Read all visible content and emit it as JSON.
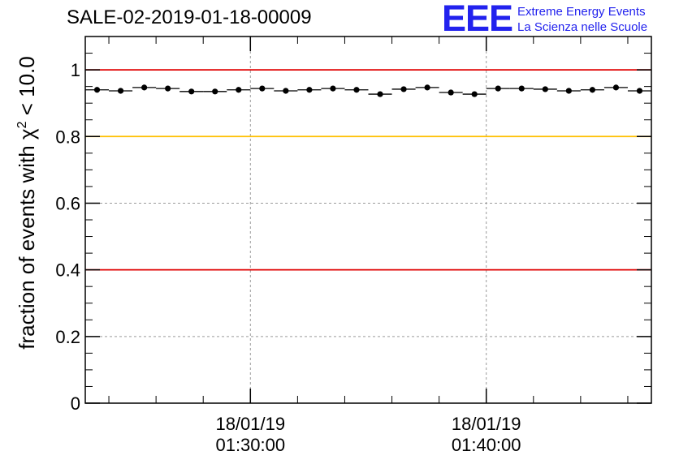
{
  "header": {
    "title": "SALE-02-2019-01-18-00009",
    "logo_text": "EEE",
    "brand_line_1": "Extreme Energy Events",
    "brand_line_2": "La Scienza nelle Scuole"
  },
  "chart_data": {
    "type": "scatter",
    "title": "SALE-02-2019-01-18-00009",
    "ylabel_prefix": "fraction of events with ",
    "ylabel_chi": "χ",
    "ylabel_sup": "2",
    "ylabel_suffix": " < 10.0",
    "xlabel": "",
    "ylim": [
      0,
      1.1
    ],
    "xlim_minutes": [
      23.0,
      47.0
    ],
    "y_ticks": [
      {
        "value": 0,
        "label": "0"
      },
      {
        "value": 0.2,
        "label": "0.2"
      },
      {
        "value": 0.4,
        "label": "0.4"
      },
      {
        "value": 0.6,
        "label": "0.6"
      },
      {
        "value": 0.8,
        "label": "0.8"
      },
      {
        "value": 1,
        "label": "1"
      }
    ],
    "x_ticks": [
      {
        "minutes": 30,
        "date": "18/01/19",
        "time": "01:30:00"
      },
      {
        "minutes": 40,
        "date": "18/01/19",
        "time": "01:40:00"
      }
    ],
    "reference_lines": [
      {
        "value": 1.0,
        "color": "#e00000"
      },
      {
        "value": 0.8,
        "color": "#ffc000"
      },
      {
        "value": 0.4,
        "color": "#e00000"
      }
    ],
    "bin_width_minutes": 1.0,
    "series": [
      {
        "name": "fraction",
        "x_minutes": [
          23.5,
          24.5,
          25.5,
          26.5,
          27.5,
          28.5,
          29.5,
          30.5,
          31.5,
          32.5,
          33.5,
          34.5,
          35.5,
          36.5,
          37.5,
          38.5,
          39.5,
          40.5,
          41.5,
          42.5,
          43.5,
          44.5,
          45.5,
          46.5
        ],
        "values": [
          0.94,
          0.937,
          0.947,
          0.944,
          0.935,
          0.935,
          0.94,
          0.944,
          0.937,
          0.94,
          0.944,
          0.94,
          0.927,
          0.942,
          0.947,
          0.932,
          0.927,
          0.944,
          0.944,
          0.942,
          0.937,
          0.94,
          0.947,
          0.937
        ]
      }
    ]
  }
}
